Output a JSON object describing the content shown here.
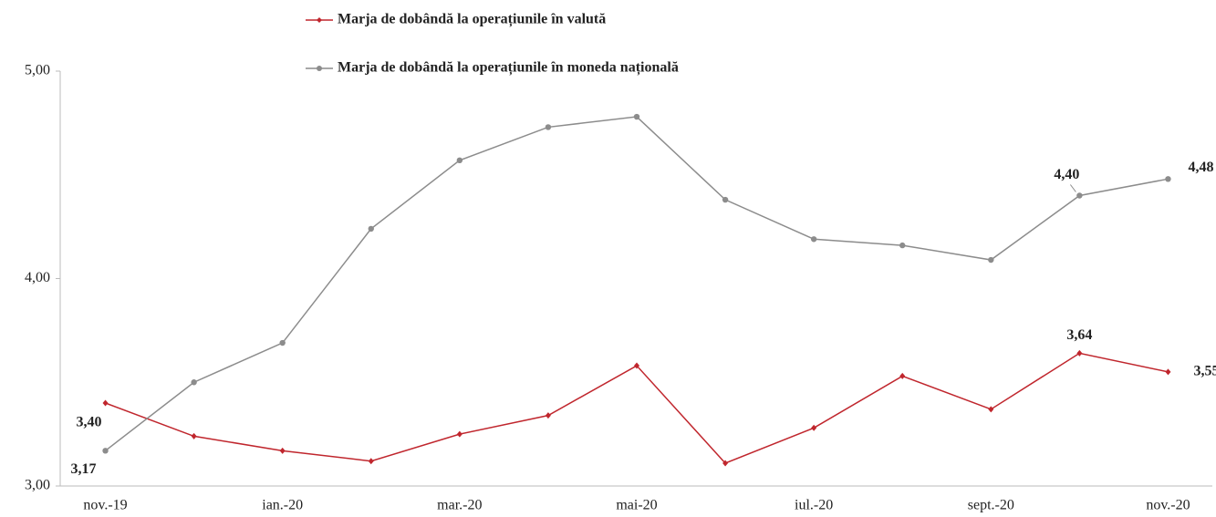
{
  "chart_data": {
    "type": "line",
    "categories": [
      "nov.-19",
      null,
      "ian.-20",
      null,
      "mar.-20",
      null,
      "mai-20",
      null,
      "iul.-20",
      null,
      "sept.-20",
      null,
      "nov.-20"
    ],
    "series": [
      {
        "name": "Marja de dobândă la operațiunile în valută",
        "color": "#c0262d",
        "values": [
          3.4,
          3.24,
          3.17,
          3.12,
          3.25,
          3.34,
          3.58,
          3.11,
          3.28,
          3.53,
          3.37,
          3.64,
          3.55
        ],
        "value_labels": [
          "3,40",
          null,
          null,
          null,
          null,
          null,
          null,
          null,
          null,
          null,
          null,
          "3,64",
          "3,55"
        ]
      },
      {
        "name": "Marja de dobândă la operațiunile în moneda națională",
        "color": "#8c8c8c",
        "values": [
          3.17,
          3.5,
          3.69,
          4.24,
          4.57,
          4.73,
          4.78,
          4.38,
          4.19,
          4.16,
          4.09,
          4.4,
          4.48
        ],
        "value_labels": [
          "3,17",
          null,
          null,
          null,
          null,
          null,
          null,
          null,
          null,
          null,
          null,
          "4,40",
          "4,48"
        ]
      }
    ],
    "ylim": [
      3,
      5
    ],
    "yticks": [
      {
        "value": 3,
        "label": "3,00"
      },
      {
        "value": 4,
        "label": "4,00"
      },
      {
        "value": 5,
        "label": "5,00"
      }
    ],
    "grid": false
  }
}
